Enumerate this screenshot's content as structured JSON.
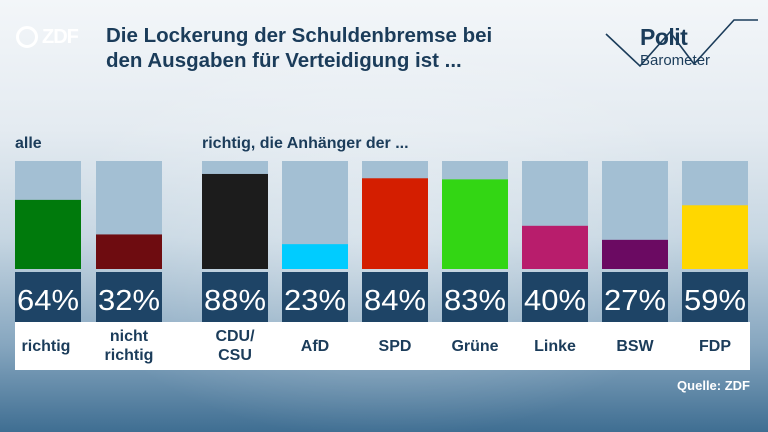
{
  "header": {
    "brand": "ZDF",
    "title_line1": "Die Lockerung der Schuldenbremse bei",
    "title_line2": "den Ausgaben für Verteidigung ist ...",
    "badge_word1": "Polit",
    "badge_word2": "Barometer"
  },
  "section_labels": {
    "overall": "alle",
    "parties": "richtig, die Anhänger der ..."
  },
  "source": "Quelle: ZDF",
  "colors": {
    "track": "#a3bfd3",
    "value_box": "#1e4466",
    "text_dark": "#1b3c5a"
  },
  "chart_data": {
    "type": "bar",
    "unit": "%",
    "ylim": [
      0,
      100
    ],
    "groups": [
      "alle",
      "richtig, die Anhänger der ..."
    ],
    "categories": [
      "richtig",
      "nicht richtig",
      "CDU/CSU",
      "AfD",
      "SPD",
      "Grüne",
      "Linke",
      "BSW",
      "FDP"
    ],
    "category_lines": [
      [
        "richtig"
      ],
      [
        "nicht",
        "richtig"
      ],
      [
        "CDU/",
        "CSU"
      ],
      [
        "AfD"
      ],
      [
        "SPD"
      ],
      [
        "Grüne"
      ],
      [
        "Linke"
      ],
      [
        "BSW"
      ],
      [
        "FDP"
      ]
    ],
    "values": [
      64,
      32,
      88,
      23,
      84,
      83,
      40,
      27,
      59
    ],
    "value_labels": [
      "64%",
      "32%",
      "88%",
      "23%",
      "84%",
      "83%",
      "40%",
      "27%",
      "59%"
    ],
    "bar_colors": [
      "#007a0c",
      "#6e0c10",
      "#1c1c1c",
      "#00ccff",
      "#d41e00",
      "#33d614",
      "#b81d6c",
      "#6b0a62",
      "#ffd700"
    ]
  }
}
